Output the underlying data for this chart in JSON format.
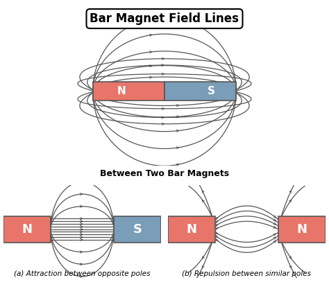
{
  "title": "Bar Magnet Field Lines",
  "subtitle": "Between Two Bar Magnets",
  "label_a": "(a) Attraction between opposite poles",
  "label_b": "(b) Repulsion between similar poles",
  "north_color": "#E8756A",
  "south_color": "#7A9DB8",
  "line_color": "#555555",
  "arrow_color": "#333333"
}
